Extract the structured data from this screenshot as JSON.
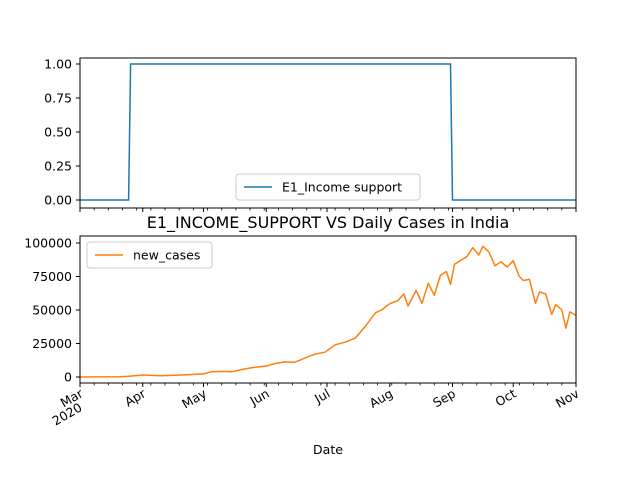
{
  "chart_data": [
    {
      "type": "line",
      "title": "",
      "xlabel": "",
      "ylabel": "",
      "ylim": [
        0.0,
        1.0
      ],
      "yticks": [
        "0.00",
        "0.25",
        "0.50",
        "0.75",
        "1.00"
      ],
      "legend": "lower-center",
      "grid": false,
      "series": [
        {
          "name": "E1_Income support",
          "color": "#1f77b4",
          "x": [
            "2020-03-01",
            "2020-03-25",
            "2020-03-26",
            "2020-08-31",
            "2020-09-01",
            "2020-11-01"
          ],
          "values": [
            0,
            0,
            1,
            1,
            0,
            0
          ]
        }
      ]
    },
    {
      "type": "line",
      "title": "E1_INCOME_SUPPORT VS Daily Cases in India",
      "xlabel": "Date",
      "ylabel": "",
      "ylim": [
        0,
        100000
      ],
      "yticks": [
        "0",
        "25000",
        "50000",
        "75000",
        "100000"
      ],
      "xticks": [
        {
          "date": "2020-03-01",
          "label": "Mar",
          "sub": "2020"
        },
        {
          "date": "2020-04-01",
          "label": "Apr"
        },
        {
          "date": "2020-05-01",
          "label": "May"
        },
        {
          "date": "2020-06-01",
          "label": "Jun"
        },
        {
          "date": "2020-07-01",
          "label": "Jul"
        },
        {
          "date": "2020-08-01",
          "label": "Aug"
        },
        {
          "date": "2020-09-01",
          "label": "Sep"
        },
        {
          "date": "2020-10-01",
          "label": "Oct"
        },
        {
          "date": "2020-11-01",
          "label": "Nov"
        }
      ],
      "legend": "upper-left",
      "grid": false,
      "series": [
        {
          "name": "new_cases",
          "color": "#ff7f0e",
          "x": [
            "2020-03-01",
            "2020-03-10",
            "2020-03-20",
            "2020-03-25",
            "2020-04-01",
            "2020-04-10",
            "2020-04-20",
            "2020-04-25",
            "2020-05-01",
            "2020-05-05",
            "2020-05-10",
            "2020-05-15",
            "2020-05-20",
            "2020-05-25",
            "2020-06-01",
            "2020-06-05",
            "2020-06-10",
            "2020-06-15",
            "2020-06-20",
            "2020-06-25",
            "2020-06-30",
            "2020-07-05",
            "2020-07-10",
            "2020-07-15",
            "2020-07-20",
            "2020-07-25",
            "2020-07-28",
            "2020-08-01",
            "2020-08-05",
            "2020-08-08",
            "2020-08-10",
            "2020-08-14",
            "2020-08-17",
            "2020-08-20",
            "2020-08-23",
            "2020-08-26",
            "2020-08-29",
            "2020-08-31",
            "2020-09-02",
            "2020-09-05",
            "2020-09-08",
            "2020-09-11",
            "2020-09-14",
            "2020-09-16",
            "2020-09-19",
            "2020-09-22",
            "2020-09-25",
            "2020-09-28",
            "2020-10-01",
            "2020-10-04",
            "2020-10-06",
            "2020-10-09",
            "2020-10-12",
            "2020-10-14",
            "2020-10-17",
            "2020-10-20",
            "2020-10-22",
            "2020-10-25",
            "2020-10-27",
            "2020-10-29",
            "2020-11-01"
          ],
          "values": [
            0,
            100,
            200,
            500,
            1500,
            900,
            1500,
            1900,
            2300,
            3900,
            4200,
            3900,
            5600,
            7000,
            8200,
            9900,
            11300,
            11000,
            14000,
            17000,
            18500,
            24000,
            26000,
            29000,
            38000,
            48000,
            50000,
            54700,
            57000,
            62000,
            53000,
            64500,
            55000,
            70000,
            61000,
            75800,
            78700,
            69000,
            84000,
            87000,
            89700,
            96500,
            91000,
            97500,
            93300,
            83000,
            86000,
            82000,
            86800,
            75000,
            72000,
            72900,
            55000,
            63500,
            62000,
            46700,
            54000,
            50000,
            36500,
            48600,
            46000
          ]
        }
      ]
    }
  ]
}
